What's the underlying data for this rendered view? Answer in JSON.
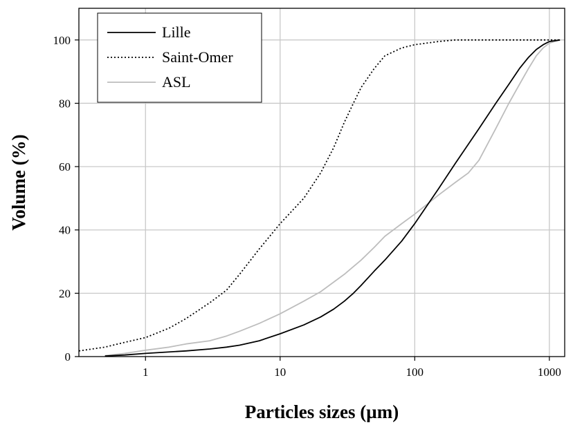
{
  "chart_data": {
    "type": "line",
    "title": "",
    "xlabel": "Particles sizes (µm)",
    "ylabel": "Volume (%)",
    "xscale": "log",
    "xlim": [
      0.32,
      1300
    ],
    "ylim": [
      0,
      110
    ],
    "xticks": [
      1,
      10,
      100,
      1000
    ],
    "xtick_labels": [
      "1",
      "10",
      "100",
      "1000"
    ],
    "yticks": [
      0,
      20,
      40,
      60,
      80,
      100
    ],
    "ytick_labels": [
      "0",
      "20",
      "40",
      "60",
      "80",
      "100"
    ],
    "grid": true,
    "legend_position": "top-left",
    "series": [
      {
        "name": "Lille",
        "style": "solid",
        "color": "#000000",
        "x": [
          0.5,
          0.7,
          1,
          2,
          3,
          4,
          5,
          7,
          10,
          15,
          20,
          25,
          30,
          35,
          40,
          50,
          60,
          80,
          100,
          150,
          200,
          300,
          400,
          500,
          600,
          700,
          800,
          900,
          1000,
          1200
        ],
        "y": [
          0.2,
          0.5,
          1,
          1.8,
          2.4,
          3,
          3.6,
          5,
          7.2,
          10,
          12.5,
          15,
          17.5,
          20,
          22.5,
          27,
          30.5,
          36.5,
          42,
          53,
          61,
          72,
          80,
          86,
          91,
          94.5,
          97,
          98.5,
          99.5,
          100
        ]
      },
      {
        "name": "Saint-Omer",
        "style": "dotted",
        "color": "#000000",
        "x": [
          0.32,
          0.5,
          0.7,
          1,
          1.5,
          2,
          3,
          4,
          5,
          7,
          10,
          15,
          20,
          25,
          30,
          35,
          40,
          50,
          60,
          80,
          100,
          150,
          200,
          1000,
          1200
        ],
        "y": [
          1.8,
          3,
          4.5,
          6,
          9,
          12,
          17,
          21,
          26,
          34,
          42,
          50,
          58,
          66,
          74,
          80,
          85,
          91,
          95,
          97.5,
          98.5,
          99.5,
          100,
          100,
          100
        ]
      },
      {
        "name": "ASL",
        "style": "solid",
        "color": "#bdbdbd",
        "x": [
          0.5,
          0.7,
          1,
          1.5,
          2,
          3,
          4,
          5,
          7,
          10,
          15,
          20,
          30,
          40,
          50,
          60,
          80,
          100,
          150,
          200,
          250,
          300,
          400,
          500,
          600,
          700,
          800,
          900,
          1000,
          1200
        ],
        "y": [
          0.3,
          1,
          2,
          3,
          4,
          5,
          6.5,
          8,
          10.5,
          13.5,
          17.5,
          20.5,
          26,
          30.5,
          34.5,
          38,
          42,
          45,
          51,
          55,
          58,
          62,
          72,
          80,
          86,
          91,
          95,
          97.5,
          99,
          100
        ]
      }
    ]
  }
}
